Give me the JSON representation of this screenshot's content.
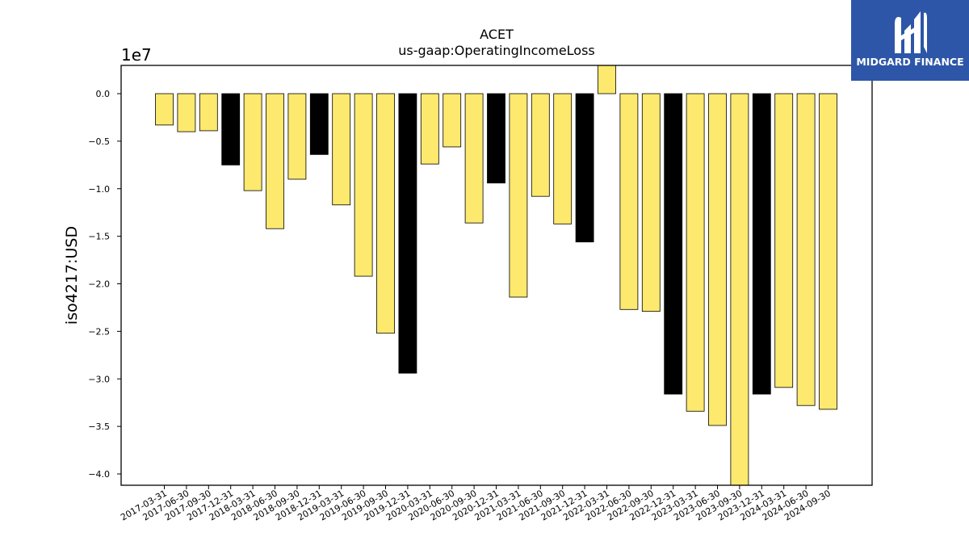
{
  "logo": {
    "text": "MIDGARD FINANCE",
    "icon": "midgard-m-icon",
    "background": "#2d56a8"
  },
  "colors": {
    "normal": "#fde96e",
    "highlight": "#000000",
    "edge": "#000000"
  },
  "chart_data": {
    "type": "bar",
    "title": "ACET",
    "subtitle": "us-gaap:OperatingIncomeLoss",
    "xlabel": "",
    "ylabel": "iso4217:USD",
    "offset_label": "1e7",
    "ylim": [
      -4.13,
      0.3
    ],
    "yticks": [
      0.0,
      -0.5,
      -1.0,
      -1.5,
      -2.0,
      -2.5,
      -3.0,
      -3.5,
      -4.0
    ],
    "ytick_labels": [
      "0.0",
      "−0.5",
      "−1.0",
      "−1.5",
      "−2.0",
      "−2.5",
      "−3.0",
      "−3.5",
      "−4.0"
    ],
    "grid": false,
    "categories": [
      "2017-03-31",
      "2017-06-30",
      "2017-09-30",
      "2017-12-31",
      "2018-03-31",
      "2018-06-30",
      "2018-09-30",
      "2018-12-31",
      "2019-03-31",
      "2019-06-30",
      "2019-09-30",
      "2019-12-31",
      "2020-03-31",
      "2020-06-30",
      "2020-09-30",
      "2020-12-31",
      "2021-03-31",
      "2021-06-30",
      "2021-09-30",
      "2021-12-31",
      "2022-03-31",
      "2022-06-30",
      "2022-09-30",
      "2022-12-31",
      "2023-03-31",
      "2023-06-30",
      "2023-09-30",
      "2023-12-31",
      "2024-03-31",
      "2024-06-30",
      "2024-09-30"
    ],
    "values": [
      -0.33,
      -0.4,
      -0.39,
      -0.75,
      -1.02,
      -1.42,
      -0.9,
      -0.64,
      -1.17,
      -1.92,
      -2.52,
      -2.94,
      -0.74,
      -0.56,
      -1.36,
      -0.94,
      -2.14,
      -1.08,
      -1.37,
      -1.56,
      0.32,
      -2.27,
      -2.29,
      -3.16,
      -3.34,
      -3.49,
      -4.13,
      -3.16,
      -3.09,
      -3.28,
      -3.32
    ],
    "highlight": [
      false,
      false,
      false,
      true,
      false,
      false,
      false,
      true,
      false,
      false,
      false,
      true,
      false,
      false,
      false,
      true,
      false,
      false,
      false,
      true,
      false,
      false,
      false,
      true,
      false,
      false,
      false,
      true,
      false,
      false,
      false
    ]
  }
}
